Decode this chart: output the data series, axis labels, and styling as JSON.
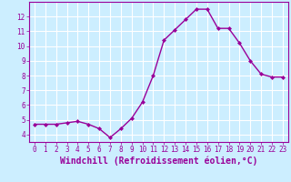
{
  "x": [
    0,
    1,
    2,
    3,
    4,
    5,
    6,
    7,
    8,
    9,
    10,
    11,
    12,
    13,
    14,
    15,
    16,
    17,
    18,
    19,
    20,
    21,
    22,
    23
  ],
  "y": [
    4.7,
    4.7,
    4.7,
    4.8,
    4.9,
    4.7,
    4.4,
    3.8,
    4.4,
    5.1,
    6.2,
    8.0,
    10.4,
    11.1,
    11.8,
    12.5,
    12.5,
    11.2,
    11.2,
    10.2,
    9.0,
    8.1,
    7.9,
    7.9
  ],
  "line_color": "#990099",
  "marker": "D",
  "marker_size": 2.0,
  "bg_color": "#cceeff",
  "grid_color": "#ffffff",
  "xlabel": "Windchill (Refroidissement éolien,°C)",
  "xlabel_color": "#990099",
  "tick_color": "#990099",
  "ylim": [
    3.5,
    13.0
  ],
  "xlim": [
    -0.5,
    23.5
  ],
  "yticks": [
    4,
    5,
    6,
    7,
    8,
    9,
    10,
    11,
    12
  ],
  "xticks": [
    0,
    1,
    2,
    3,
    4,
    5,
    6,
    7,
    8,
    9,
    10,
    11,
    12,
    13,
    14,
    15,
    16,
    17,
    18,
    19,
    20,
    21,
    22,
    23
  ],
  "tick_fontsize": 5.5,
  "xlabel_fontsize": 7.0,
  "line_width": 1.0
}
